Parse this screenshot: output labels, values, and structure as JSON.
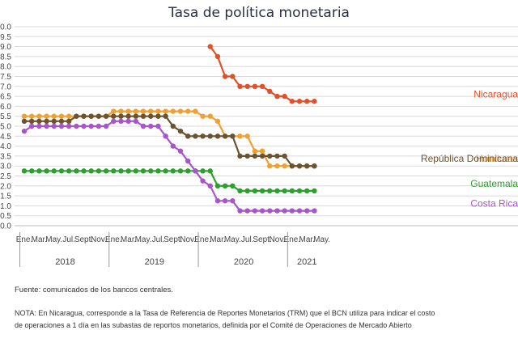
{
  "chart_data": {
    "type": "line",
    "title": "Tasa de política monetaria",
    "ylim": [
      0.0,
      10.0
    ],
    "ytick_step": 0.5,
    "ytick_labels": [
      "0.0",
      "0.5",
      "1.0",
      "1.5",
      "2.0",
      "2.5",
      "3.0",
      "3.5",
      "4.0",
      "4.5",
      "5.0",
      "5.5",
      "6.0",
      "6.5",
      "7.0",
      "7.5",
      "8.0",
      "8.5",
      "9.0",
      "9.5",
      "10.0"
    ],
    "month_tick_labels": [
      "Ene.",
      "Mar.",
      "May.",
      "Jul.",
      "Sept.",
      "Nov.",
      "Ene.",
      "Mar.",
      "May.",
      "Jul.",
      "Sept.",
      "Nov.",
      "Ene.",
      "Mar.",
      "May.",
      "Jul.",
      "Sept.",
      "Nov.",
      "Ene.",
      "Mar.",
      "May."
    ],
    "year_labels": [
      "2018",
      "2019",
      "2020",
      "2021"
    ],
    "x_start": "Ene. 2018",
    "grid": true,
    "series": [
      {
        "name": "Nicaragua",
        "color": "#e0502a",
        "values": [
          null,
          null,
          null,
          null,
          null,
          null,
          null,
          null,
          null,
          null,
          null,
          null,
          null,
          null,
          null,
          null,
          null,
          null,
          null,
          null,
          null,
          null,
          null,
          null,
          null,
          9.0,
          8.5,
          7.5,
          7.5,
          7.0,
          7.0,
          7.0,
          7.0,
          6.75,
          6.5,
          6.5,
          6.25,
          6.25,
          6.25,
          6.25
        ]
      },
      {
        "name": "Honduras",
        "color": "#f0a030",
        "values": [
          5.5,
          5.5,
          5.5,
          5.5,
          5.5,
          5.5,
          5.5,
          5.5,
          5.5,
          5.5,
          5.5,
          5.5,
          5.75,
          5.75,
          5.75,
          5.75,
          5.75,
          5.75,
          5.75,
          5.75,
          5.75,
          5.75,
          5.75,
          5.75,
          5.5,
          5.5,
          5.25,
          4.5,
          4.5,
          4.5,
          4.5,
          3.75,
          3.75,
          3.0,
          3.0,
          3.0,
          3.0,
          3.0,
          3.0,
          3.0
        ]
      },
      {
        "name": "República Dominicana",
        "color": "#6b5230",
        "values": [
          5.25,
          5.25,
          5.25,
          5.25,
          5.25,
          5.25,
          5.25,
          5.5,
          5.5,
          5.5,
          5.5,
          5.5,
          5.5,
          5.5,
          5.5,
          5.5,
          5.5,
          5.5,
          5.5,
          5.5,
          5.0,
          4.75,
          4.5,
          4.5,
          4.5,
          4.5,
          4.5,
          4.5,
          4.5,
          3.5,
          3.5,
          3.5,
          3.5,
          3.5,
          3.5,
          3.5,
          3.0,
          3.0,
          3.0,
          3.0
        ]
      },
      {
        "name": "Guatemala",
        "color": "#2ca02c",
        "values": [
          2.75,
          2.75,
          2.75,
          2.75,
          2.75,
          2.75,
          2.75,
          2.75,
          2.75,
          2.75,
          2.75,
          2.75,
          2.75,
          2.75,
          2.75,
          2.75,
          2.75,
          2.75,
          2.75,
          2.75,
          2.75,
          2.75,
          2.75,
          2.75,
          2.75,
          2.75,
          2.0,
          2.0,
          2.0,
          1.75,
          1.75,
          1.75,
          1.75,
          1.75,
          1.75,
          1.75,
          1.75,
          1.75,
          1.75,
          1.75
        ]
      },
      {
        "name": "Costa Rica",
        "color": "#a855cc",
        "values": [
          4.75,
          5.0,
          5.0,
          5.0,
          5.0,
          5.0,
          5.0,
          5.0,
          5.0,
          5.0,
          5.0,
          5.0,
          5.25,
          5.25,
          5.25,
          5.25,
          5.0,
          5.0,
          5.0,
          4.5,
          4.0,
          3.75,
          3.25,
          2.75,
          2.25,
          2.0,
          1.25,
          1.25,
          1.25,
          0.75,
          0.75,
          0.75,
          0.75,
          0.75,
          0.75,
          0.75,
          0.75,
          0.75,
          0.75,
          0.75
        ]
      }
    ]
  },
  "footnotes": {
    "source": "Fuente: comunicados de los bancos centrales.",
    "note_line1": "NOTA: En Nicaragua, corresponde a la Tasa de Referencia de Reportes Monetarios (TRM) que el BCN utiliza para indicar el costo",
    "note_line2": "de operaciones a 1 día en las subastas de reportos monetarios, definida por el Comité de Operaciones de Mercado Abierto"
  }
}
